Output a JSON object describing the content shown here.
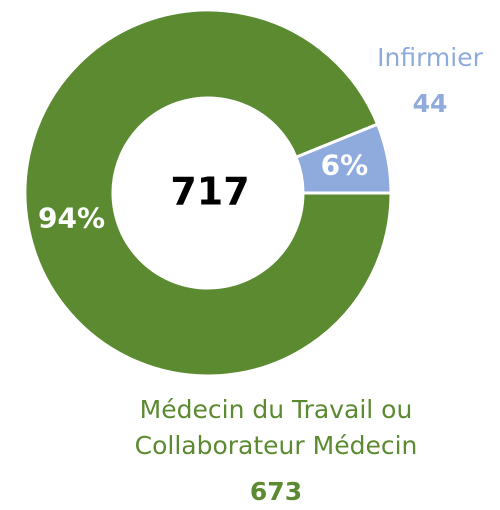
{
  "chart_data": {
    "type": "donut",
    "categories": [
      "Infirmier",
      "Médecin du Travail ou Collaborateur Médecin"
    ],
    "values": [
      44,
      673
    ],
    "percent_labels": [
      "6%",
      "94%"
    ],
    "colors": [
      "#8faadc",
      "#5b8a31"
    ],
    "total": 717
  }
}
